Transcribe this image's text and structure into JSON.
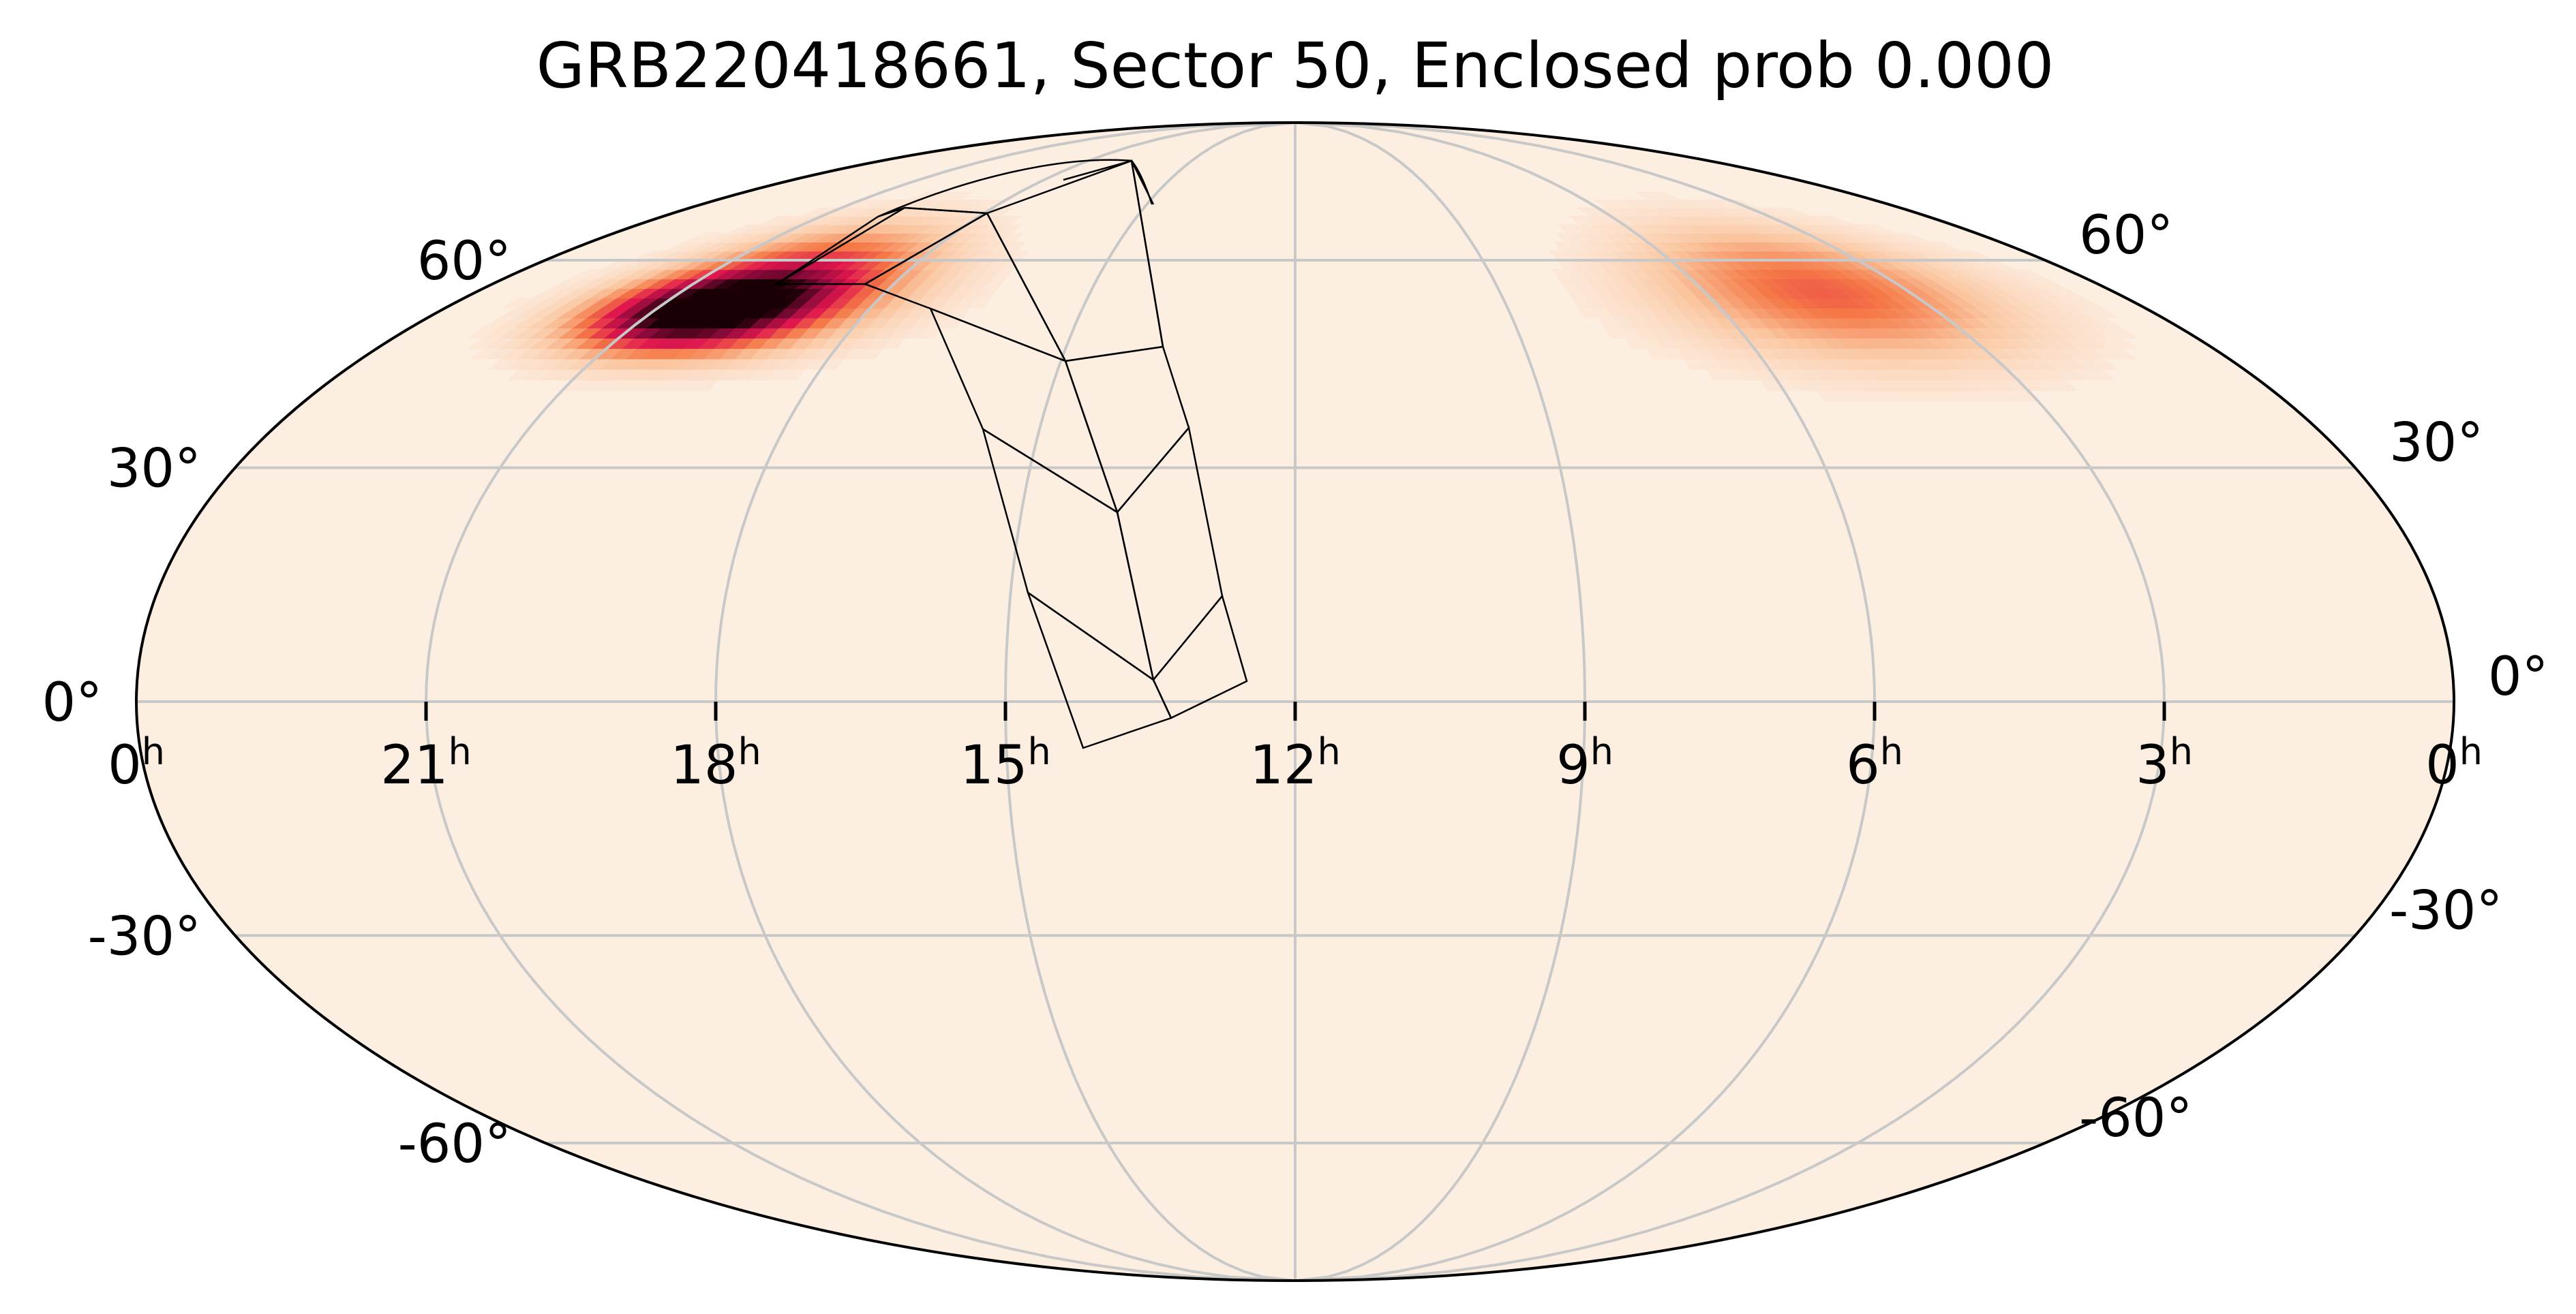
{
  "chart_data": {
    "type": "sky-map",
    "projection": "mollweide",
    "title": "GRB220418661, Sector 50, Enclosed prob 0.000",
    "ra_ticks": [
      {
        "label": "0",
        "sup": "h",
        "ra_hours": 24
      },
      {
        "label": "21",
        "sup": "h",
        "ra_hours": 21
      },
      {
        "label": "18",
        "sup": "h",
        "ra_hours": 18
      },
      {
        "label": "15",
        "sup": "h",
        "ra_hours": 15
      },
      {
        "label": "12",
        "sup": "h",
        "ra_hours": 12
      },
      {
        "label": "9",
        "sup": "h",
        "ra_hours": 9
      },
      {
        "label": "6",
        "sup": "h",
        "ra_hours": 6
      },
      {
        "label": "3",
        "sup": "h",
        "ra_hours": 3
      },
      {
        "label": "0",
        "sup": "h",
        "ra_hours": 0
      }
    ],
    "dec_ticks_left": [
      {
        "label": "60°",
        "dec": 60
      },
      {
        "label": "30°",
        "dec": 30
      },
      {
        "label": "0°",
        "dec": 0
      },
      {
        "label": "-30°",
        "dec": -30
      },
      {
        "label": "-60°",
        "dec": -60
      }
    ],
    "dec_ticks_right": [
      {
        "label": "60°",
        "dec": 60
      },
      {
        "label": "30°",
        "dec": 30
      },
      {
        "label": "0°",
        "dec": 0
      },
      {
        "label": "-30°",
        "dec": -30
      },
      {
        "label": "-60°",
        "dec": -60
      }
    ],
    "grid": true,
    "ra_direction": "increasing-left",
    "colormap": {
      "low": "#fdeee2",
      "mid1": "#f8a15a",
      "mid2": "#e0174e",
      "high": "#1a0005"
    },
    "probability_blobs": [
      {
        "ra_hours": 20.3,
        "dec": 52,
        "sigma_ra_hours": 1.0,
        "sigma_dec": 4,
        "peak": 1.0
      },
      {
        "ra_hours": 19.5,
        "dec": 57,
        "sigma_ra_hours": 1.3,
        "sigma_dec": 6,
        "peak": 0.55
      },
      {
        "ra_hours": 4.3,
        "dec": 55,
        "sigma_ra_hours": 1.6,
        "sigma_dec": 7,
        "peak": 0.45
      }
    ],
    "sector": 50,
    "enclosed_probability": 0.0,
    "camera_footprints": [
      {
        "camera": 1,
        "ccd_grid": [
          [
            [
              13.47,
              -3.24
            ],
            [
              12.7,
              -0.3
            ],
            [
              13.05,
              2.86
            ],
            [
              13.8,
              0
            ]
          ],
          [
            [
              13.9,
              0.1
            ],
            [
              13.15,
              3.0
            ],
            [
              13.5,
              6.2
            ],
            [
              14.25,
              3.3
            ]
          ],
          [
            [
              13.47,
              -3.24
            ],
            [
              13.8,
              0
            ],
            [
              14.25,
              3.3
            ],
            [
              13.9,
              0.1
            ]
          ],
          [
            [
              13.05,
              2.86
            ],
            [
              13.5,
              6.2
            ],
            [
              13.15,
              3.0
            ],
            [
              12.7,
              -0.3
            ]
          ]
        ]
      },
      {
        "camera": 2,
        "ccd_grid": []
      },
      {
        "camera": 3,
        "ccd_grid": []
      },
      {
        "camera": 4,
        "ccd_grid": []
      }
    ]
  }
}
